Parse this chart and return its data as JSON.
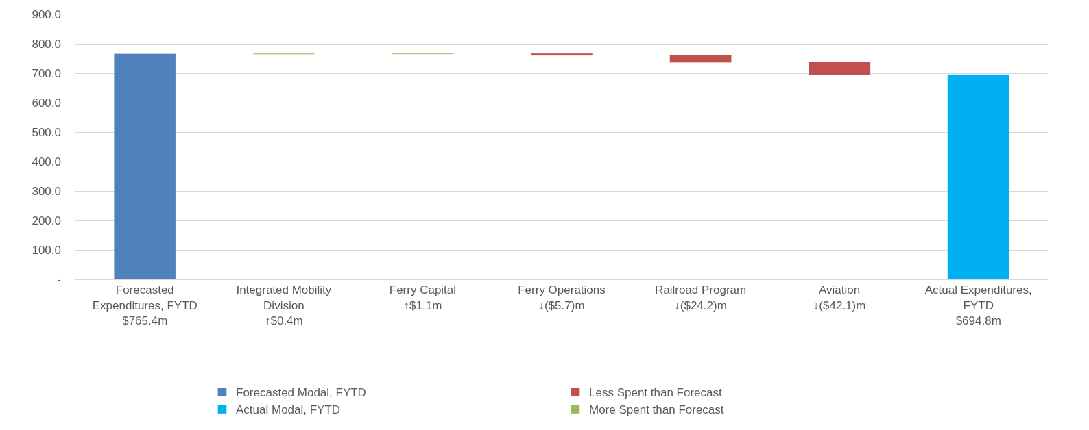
{
  "chart_data": {
    "type": "bar",
    "categories": [
      "Forecasted\nExpenditures, FYTD\n$765.4m",
      "Integrated Mobility\nDivision\n↑$0.4m",
      "Ferry Capital\n↑$1.1m",
      "Ferry Operations\n↓($5.7)m",
      "Railroad Program\n↓($24.2)m",
      "Aviation\n↓($42.1)m",
      "Actual Expenditures,\nFYTD\n$694.8m"
    ],
    "series": [
      {
        "name": "Forecasted Modal, FYTD",
        "color": "#4f81bd",
        "values": [
          765.4,
          null,
          null,
          null,
          null,
          null,
          null
        ],
        "base": [
          0,
          null,
          null,
          null,
          null,
          null,
          null
        ]
      },
      {
        "name": "Less Spent than Forecast",
        "color": "#c0504d",
        "values": [
          null,
          null,
          null,
          -5.7,
          -24.2,
          -42.1,
          null
        ],
        "base": [
          null,
          null,
          null,
          766.9,
          761.2,
          737.0,
          null
        ]
      },
      {
        "name": "Actual Modal, FYTD",
        "color": "#00b0f0",
        "values": [
          null,
          null,
          null,
          null,
          null,
          null,
          694.8
        ],
        "base": [
          null,
          null,
          null,
          null,
          null,
          null,
          0
        ]
      },
      {
        "name": "More Spent than Forecast",
        "color": "#9bbb59",
        "values": [
          null,
          0.4,
          1.1,
          null,
          null,
          null,
          null
        ],
        "base": [
          null,
          765.4,
          765.8,
          null,
          null,
          null,
          null
        ]
      }
    ],
    "ylim": [
      0,
      900
    ],
    "yticks": [
      {
        "value": 0,
        "label": "-"
      },
      {
        "value": 100,
        "label": "100.0"
      },
      {
        "value": 200,
        "label": "200.0"
      },
      {
        "value": 300,
        "label": "300.0"
      },
      {
        "value": 400,
        "label": "400.0"
      },
      {
        "value": 500,
        "label": "500.0"
      },
      {
        "value": 600,
        "label": "600.0"
      },
      {
        "value": 700,
        "label": "700.0"
      },
      {
        "value": 800,
        "label": "800.0"
      },
      {
        "value": 900,
        "label": "900.0"
      }
    ],
    "grid": "y",
    "legend": "bottom"
  }
}
